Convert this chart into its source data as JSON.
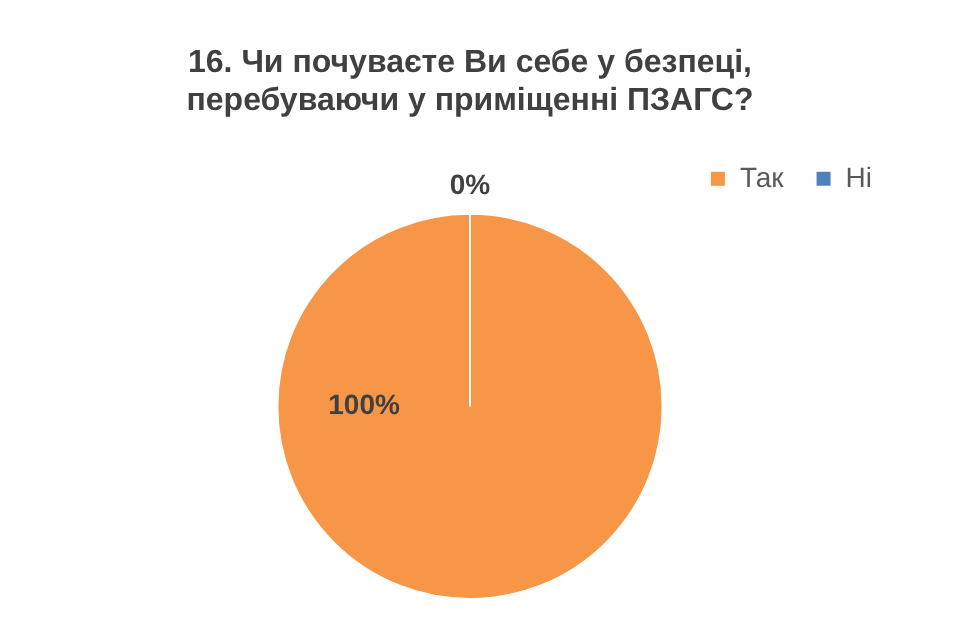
{
  "chart_data": {
    "type": "pie",
    "title": "16. Чи почуваєте Ви себе у безпеці,\nперебуваючи у приміщенні ПЗАГС?",
    "categories": [
      "Так",
      "Ні"
    ],
    "values": [
      100,
      0
    ],
    "colors": [
      "#f79646",
      "#4f81bd"
    ],
    "value_labels": [
      "100%",
      "0%"
    ],
    "legend": "top right"
  }
}
